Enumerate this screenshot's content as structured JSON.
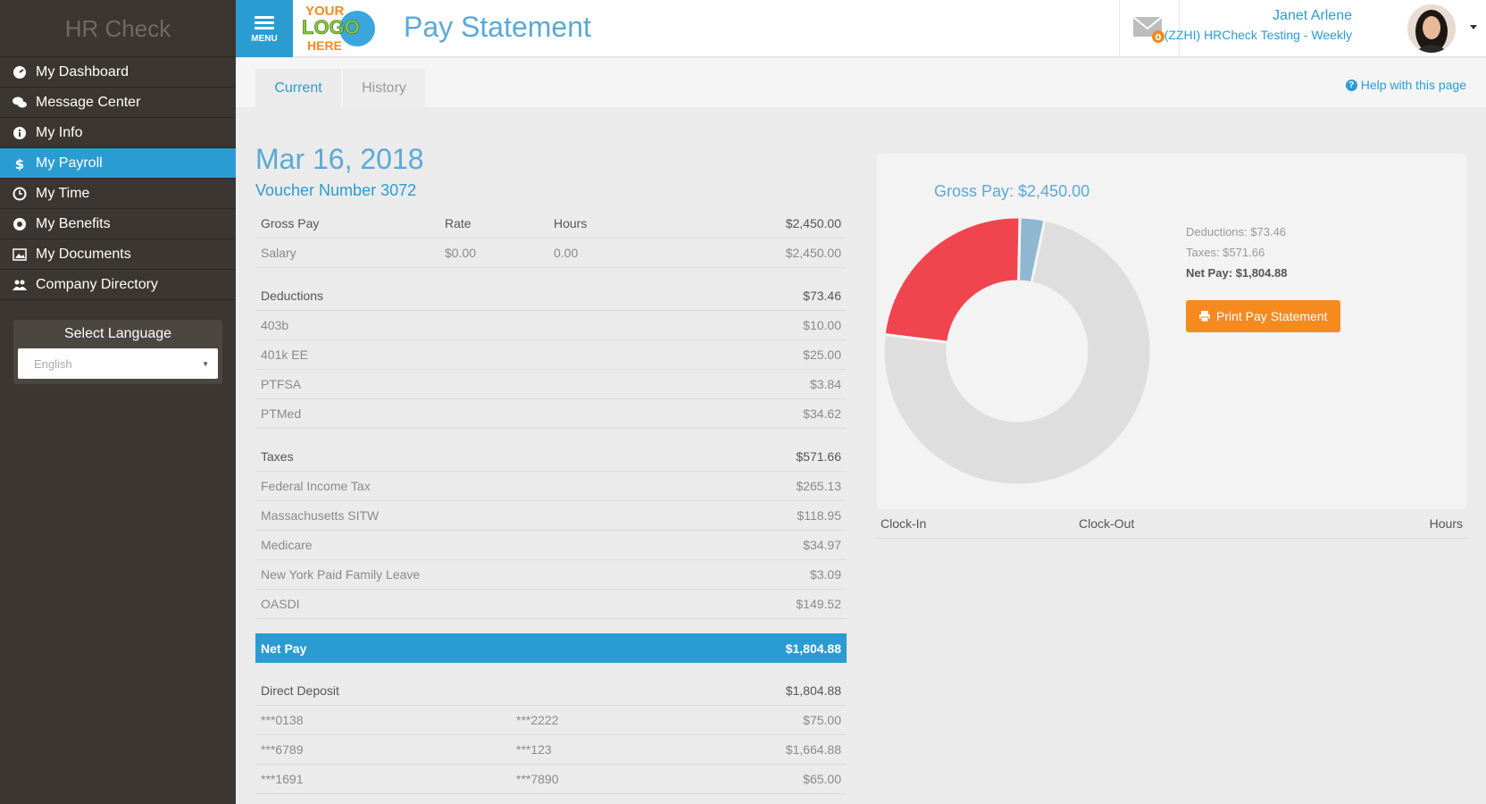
{
  "sidebar": {
    "brand": "HR Check",
    "items": [
      {
        "label": "My Dashboard",
        "icon": "dashboard-icon"
      },
      {
        "label": "Message Center",
        "icon": "chat-icon"
      },
      {
        "label": "My Info",
        "icon": "info-icon"
      },
      {
        "label": "My Payroll",
        "icon": "dollar-icon",
        "active": true
      },
      {
        "label": "My Time",
        "icon": "clock-icon"
      },
      {
        "label": "My Benefits",
        "icon": "benefits-icon"
      },
      {
        "label": "My Documents",
        "icon": "image-icon"
      },
      {
        "label": "Company Directory",
        "icon": "users-icon"
      }
    ],
    "language": {
      "title": "Select Language",
      "value": "English"
    }
  },
  "header": {
    "menu_label": "MENU",
    "logo": {
      "line1": "YOUR",
      "line2": "LOGO",
      "line3": "HERE"
    },
    "title": "Pay Statement",
    "mail_badge": "0",
    "user_name": "Janet Arlene",
    "user_company": "(ZZHI) HRCheck Testing - Weekly"
  },
  "tabs": {
    "current": "Current",
    "history": "History"
  },
  "help_label": "Help with this page",
  "statement": {
    "date": "Mar 16, 2018",
    "voucher": "Voucher Number 3072",
    "gross": {
      "label": "Gross Pay",
      "rate_label": "Rate",
      "hours_label": "Hours",
      "total": "$2,450.00",
      "rows": [
        {
          "label": "Salary",
          "rate": "$0.00",
          "hours": "0.00",
          "amount": "$2,450.00"
        }
      ]
    },
    "deductions": {
      "label": "Deductions",
      "total": "$73.46",
      "rows": [
        {
          "label": "403b",
          "amount": "$10.00"
        },
        {
          "label": "401k EE",
          "amount": "$25.00"
        },
        {
          "label": "PTFSA",
          "amount": "$3.84"
        },
        {
          "label": "PTMed",
          "amount": "$34.62"
        }
      ]
    },
    "taxes": {
      "label": "Taxes",
      "total": "$571.66",
      "rows": [
        {
          "label": "Federal Income Tax",
          "amount": "$265.13"
        },
        {
          "label": "Massachusetts SITW",
          "amount": "$118.95"
        },
        {
          "label": "Medicare",
          "amount": "$34.97"
        },
        {
          "label": "New York Paid Family Leave",
          "amount": "$3.09"
        },
        {
          "label": "OASDI",
          "amount": "$149.52"
        }
      ]
    },
    "net_pay": {
      "label": "Net Pay",
      "amount": "$1,804.88"
    },
    "direct_deposit": {
      "label": "Direct Deposit",
      "total": "$1,804.88",
      "rows": [
        {
          "account": "***0138",
          "routing": "***2222",
          "amount": "$75.00"
        },
        {
          "account": "***6789",
          "routing": "***123",
          "amount": "$1,664.88"
        },
        {
          "account": "***1691",
          "routing": "***7890",
          "amount": "$65.00"
        }
      ]
    }
  },
  "summary": {
    "gross_title": "Gross Pay: $2,450.00",
    "deductions": "Deductions: $73.46",
    "taxes": "Taxes: $571.66",
    "net": "Net Pay: $1,804.88",
    "print_label": "Print Pay Statement"
  },
  "chart_data": {
    "type": "pie",
    "title": "Gross Pay: $2,450.00",
    "donut": true,
    "slices": [
      {
        "label": "Deductions: $73.46",
        "value": 73.46,
        "color": "#8fb8d0"
      },
      {
        "label": "Net Pay: $1,804.88",
        "value": 1804.88,
        "color": "#dedede"
      },
      {
        "label": "Taxes: $571.66",
        "value": 571.66,
        "color": "#f0444f"
      }
    ]
  },
  "time": {
    "clock_in": "Clock-In",
    "clock_out": "Clock-Out",
    "hours": "Hours"
  },
  "colors": {
    "accent": "#2b9cd2",
    "sidebar": "#3b3631",
    "orange": "#f58a1f",
    "taxes": "#f0444f"
  }
}
